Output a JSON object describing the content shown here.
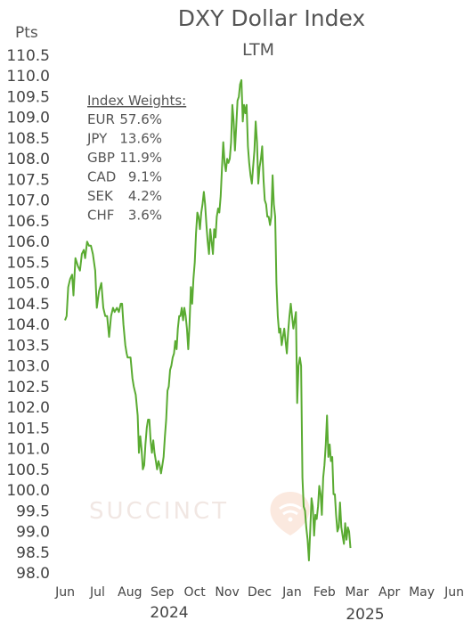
{
  "chart_data": {
    "type": "line",
    "title": "DXY Dollar Index",
    "subtitle": "LTM",
    "unit_label": "Pts",
    "ylim": [
      98.0,
      110.5
    ],
    "y_ticks": [
      "110.5",
      "110.0",
      "109.5",
      "109.0",
      "108.5",
      "108.0",
      "107.5",
      "107.0",
      "106.5",
      "106.0",
      "105.5",
      "105.0",
      "104.5",
      "104.0",
      "103.5",
      "103.0",
      "102.5",
      "102.0",
      "101.5",
      "101.0",
      "100.5",
      "100.0",
      "99.5",
      "99.0",
      "98.5",
      "98.0"
    ],
    "x_ticks": [
      "Jun",
      "Jul",
      "Aug",
      "Sep",
      "Oct",
      "Nov",
      "Dec",
      "Jan",
      "Feb",
      "Mar",
      "Apr",
      "May",
      "Jun"
    ],
    "year_labels": [
      "2024",
      "2025"
    ],
    "grid": false,
    "legend": "none",
    "line_color": "#5aab32",
    "watermark": "SUCCINCT",
    "weights": {
      "title": "Index Weights:",
      "items": [
        {
          "currency": "EUR",
          "weight": "57.6%"
        },
        {
          "currency": "JPY",
          "weight": "13.6%"
        },
        {
          "currency": "GBP",
          "weight": "11.9%"
        },
        {
          "currency": "CAD",
          "weight": "9.1%"
        },
        {
          "currency": "SEK",
          "weight": "4.2%"
        },
        {
          "currency": "CHF",
          "weight": "3.6%"
        }
      ]
    },
    "series": [
      {
        "color": "#5aab32",
        "points": [
          [
            0.0,
            104.1
          ],
          [
            0.05,
            104.2
          ],
          [
            0.1,
            104.9
          ],
          [
            0.16,
            105.1
          ],
          [
            0.22,
            105.2
          ],
          [
            0.26,
            104.7
          ],
          [
            0.32,
            105.6
          ],
          [
            0.4,
            105.4
          ],
          [
            0.46,
            105.3
          ],
          [
            0.52,
            105.7
          ],
          [
            0.58,
            105.8
          ],
          [
            0.62,
            105.6
          ],
          [
            0.68,
            106.0
          ],
          [
            0.74,
            105.9
          ],
          [
            0.8,
            105.9
          ],
          [
            0.86,
            105.7
          ],
          [
            0.93,
            105.3
          ],
          [
            0.98,
            104.4
          ],
          [
            1.05,
            104.8
          ],
          [
            1.12,
            105.0
          ],
          [
            1.18,
            104.4
          ],
          [
            1.24,
            104.2
          ],
          [
            1.3,
            104.2
          ],
          [
            1.36,
            103.7
          ],
          [
            1.42,
            104.2
          ],
          [
            1.48,
            104.4
          ],
          [
            1.53,
            104.3
          ],
          [
            1.6,
            104.4
          ],
          [
            1.66,
            104.3
          ],
          [
            1.72,
            104.5
          ],
          [
            1.76,
            104.5
          ],
          [
            1.8,
            104.0
          ],
          [
            1.86,
            103.5
          ],
          [
            1.9,
            103.3
          ],
          [
            1.93,
            103.2
          ],
          [
            1.97,
            103.2
          ],
          [
            2.02,
            103.2
          ],
          [
            2.08,
            102.7
          ],
          [
            2.12,
            102.5
          ],
          [
            2.18,
            102.3
          ],
          [
            2.24,
            101.8
          ],
          [
            2.28,
            100.9
          ],
          [
            2.32,
            101.3
          ],
          [
            2.36,
            101.0
          ],
          [
            2.4,
            100.5
          ],
          [
            2.44,
            100.6
          ],
          [
            2.48,
            101.1
          ],
          [
            2.52,
            101.5
          ],
          [
            2.56,
            101.7
          ],
          [
            2.6,
            101.7
          ],
          [
            2.64,
            101.2
          ],
          [
            2.68,
            100.9
          ],
          [
            2.72,
            101.2
          ],
          [
            2.76,
            100.9
          ],
          [
            2.8,
            100.7
          ],
          [
            2.84,
            100.5
          ],
          [
            2.88,
            100.7
          ],
          [
            2.92,
            100.6
          ],
          [
            2.96,
            100.4
          ],
          [
            3.0,
            100.6
          ],
          [
            3.04,
            100.8
          ],
          [
            3.08,
            101.3
          ],
          [
            3.12,
            101.7
          ],
          [
            3.16,
            102.4
          ],
          [
            3.2,
            102.5
          ],
          [
            3.24,
            102.9
          ],
          [
            3.28,
            103.0
          ],
          [
            3.32,
            103.2
          ],
          [
            3.36,
            103.3
          ],
          [
            3.4,
            103.6
          ],
          [
            3.44,
            103.4
          ],
          [
            3.48,
            103.9
          ],
          [
            3.52,
            104.2
          ],
          [
            3.56,
            104.2
          ],
          [
            3.6,
            104.4
          ],
          [
            3.64,
            104.1
          ],
          [
            3.68,
            104.4
          ],
          [
            3.72,
            104.2
          ],
          [
            3.76,
            103.9
          ],
          [
            3.8,
            103.4
          ],
          [
            3.84,
            104.0
          ],
          [
            3.88,
            104.9
          ],
          [
            3.92,
            104.5
          ],
          [
            3.96,
            105.1
          ],
          [
            4.0,
            105.5
          ],
          [
            4.04,
            106.2
          ],
          [
            4.08,
            106.7
          ],
          [
            4.12,
            106.6
          ],
          [
            4.16,
            106.3
          ],
          [
            4.2,
            106.7
          ],
          [
            4.24,
            106.9
          ],
          [
            4.28,
            107.2
          ],
          [
            4.32,
            106.9
          ],
          [
            4.36,
            106.4
          ],
          [
            4.4,
            106.0
          ],
          [
            4.44,
            105.7
          ],
          [
            4.48,
            106.3
          ],
          [
            4.52,
            106.0
          ],
          [
            4.56,
            105.7
          ],
          [
            4.6,
            106.3
          ],
          [
            4.64,
            106.1
          ],
          [
            4.68,
            106.6
          ],
          [
            4.72,
            106.8
          ],
          [
            4.76,
            106.7
          ],
          [
            4.8,
            107.1
          ],
          [
            4.84,
            107.8
          ],
          [
            4.88,
            108.4
          ],
          [
            4.92,
            107.9
          ],
          [
            4.96,
            107.7
          ],
          [
            5.0,
            108.0
          ],
          [
            5.04,
            107.9
          ],
          [
            5.08,
            108.0
          ],
          [
            5.12,
            108.4
          ],
          [
            5.16,
            109.3
          ],
          [
            5.2,
            108.9
          ],
          [
            5.24,
            108.2
          ],
          [
            5.28,
            108.8
          ],
          [
            5.32,
            109.4
          ],
          [
            5.36,
            109.5
          ],
          [
            5.4,
            109.8
          ],
          [
            5.44,
            109.9
          ],
          [
            5.48,
            108.9
          ],
          [
            5.52,
            109.3
          ],
          [
            5.56,
            109.1
          ],
          [
            5.6,
            109.3
          ],
          [
            5.64,
            108.3
          ],
          [
            5.68,
            107.9
          ],
          [
            5.72,
            107.6
          ],
          [
            5.76,
            107.4
          ],
          [
            5.8,
            107.8
          ],
          [
            5.84,
            108.2
          ],
          [
            5.88,
            108.9
          ],
          [
            5.92,
            108.4
          ],
          [
            5.96,
            107.4
          ],
          [
            6.0,
            107.8
          ],
          [
            6.04,
            108.0
          ],
          [
            6.08,
            108.3
          ],
          [
            6.12,
            107.5
          ],
          [
            6.16,
            107.0
          ],
          [
            6.2,
            106.9
          ],
          [
            6.24,
            106.6
          ],
          [
            6.28,
            106.6
          ],
          [
            6.32,
            106.4
          ],
          [
            6.36,
            106.6
          ],
          [
            6.4,
            107.6
          ],
          [
            6.44,
            106.9
          ],
          [
            6.48,
            106.6
          ],
          [
            6.52,
            105.0
          ],
          [
            6.56,
            104.2
          ],
          [
            6.6,
            103.8
          ],
          [
            6.64,
            103.9
          ],
          [
            6.68,
            103.5
          ],
          [
            6.72,
            103.7
          ],
          [
            6.76,
            103.9
          ],
          [
            6.8,
            103.6
          ],
          [
            6.84,
            103.3
          ],
          [
            6.88,
            103.8
          ],
          [
            6.92,
            104.2
          ],
          [
            6.96,
            104.5
          ],
          [
            7.0,
            104.2
          ],
          [
            7.04,
            103.9
          ],
          [
            7.08,
            104.1
          ],
          [
            7.12,
            104.3
          ],
          [
            7.16,
            102.1
          ],
          [
            7.2,
            103.0
          ],
          [
            7.24,
            103.2
          ],
          [
            7.28,
            103.0
          ],
          [
            7.32,
            100.3
          ],
          [
            7.36,
            99.6
          ],
          [
            7.4,
            99.5
          ],
          [
            7.44,
            99.1
          ],
          [
            7.48,
            98.8
          ],
          [
            7.52,
            98.3
          ],
          [
            7.56,
            99.0
          ],
          [
            7.6,
            99.8
          ],
          [
            7.64,
            99.6
          ],
          [
            7.68,
            98.9
          ],
          [
            7.72,
            99.4
          ],
          [
            7.76,
            99.3
          ],
          [
            7.8,
            99.6
          ],
          [
            7.84,
            100.1
          ],
          [
            7.88,
            99.9
          ],
          [
            7.92,
            99.4
          ],
          [
            7.96,
            100.3
          ],
          [
            8.0,
            100.6
          ],
          [
            8.04,
            101.1
          ],
          [
            8.08,
            101.8
          ],
          [
            8.12,
            100.8
          ],
          [
            8.16,
            101.1
          ],
          [
            8.2,
            100.7
          ],
          [
            8.24,
            100.8
          ],
          [
            8.28,
            99.9
          ],
          [
            8.32,
            99.9
          ],
          [
            8.36,
            99.4
          ],
          [
            8.4,
            99.0
          ],
          [
            8.44,
            99.1
          ],
          [
            8.48,
            99.7
          ],
          [
            8.52,
            99.1
          ],
          [
            8.56,
            98.9
          ],
          [
            8.6,
            98.7
          ],
          [
            8.64,
            99.2
          ],
          [
            8.68,
            98.8
          ],
          [
            8.72,
            99.1
          ],
          [
            8.76,
            99.0
          ],
          [
            8.8,
            98.6
          ]
        ]
      }
    ]
  }
}
